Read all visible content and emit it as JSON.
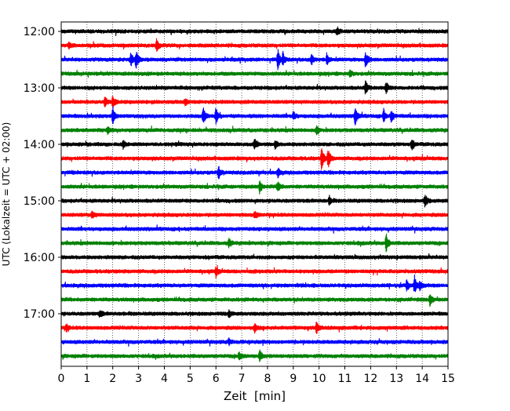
{
  "chart_data": {
    "type": "line",
    "title": "",
    "xlabel": "Zeit  [min]",
    "ylabel": "UTC (Lokalzeit = UTC + 02:00)",
    "xlim": [
      0,
      15
    ],
    "x_ticks": [
      0,
      1,
      2,
      3,
      4,
      5,
      6,
      7,
      8,
      9,
      10,
      11,
      12,
      13,
      14,
      15
    ],
    "x_grid": true,
    "x_grid_style": "dotted",
    "y_ticks": [
      "12:00",
      "13:00",
      "14:00",
      "15:00",
      "16:00",
      "17:00"
    ],
    "trace_interval_min": 15,
    "first_trace_start": "12:00",
    "last_trace_start": "17:45",
    "trace_color_cycle": [
      "#000000",
      "#ff0000",
      "#0000ff",
      "#008000"
    ],
    "events": [
      {
        "trace": "12:00",
        "x": [
          10.7
        ],
        "amp": [
          0.6
        ]
      },
      {
        "trace": "12:15",
        "x": [
          0.3,
          3.7
        ],
        "amp": [
          0.6,
          0.9
        ]
      },
      {
        "trace": "12:30",
        "x": [
          2.7,
          2.9,
          8.4,
          8.6,
          9.7,
          10.3,
          11.8
        ],
        "amp": [
          1.0,
          1.3,
          1.4,
          0.9,
          0.8,
          0.8,
          1.3
        ]
      },
      {
        "trace": "12:45",
        "x": [
          11.2
        ],
        "amp": [
          0.5
        ]
      },
      {
        "trace": "13:00",
        "x": [
          11.8,
          12.6
        ],
        "amp": [
          1.0,
          0.8
        ]
      },
      {
        "trace": "13:15",
        "x": [
          1.7,
          2.0,
          4.8
        ],
        "amp": [
          0.7,
          0.9,
          0.5
        ]
      },
      {
        "trace": "13:30",
        "x": [
          2.0,
          5.5,
          6.0,
          9.0,
          11.4,
          12.5,
          12.8
        ],
        "amp": [
          1.2,
          1.5,
          1.2,
          0.6,
          1.3,
          0.9,
          0.8
        ]
      },
      {
        "trace": "13:45",
        "x": [
          1.8,
          9.9
        ],
        "amp": [
          0.5,
          0.6
        ]
      },
      {
        "trace": "14:00",
        "x": [
          2.4,
          7.5,
          8.3,
          13.6
        ],
        "amp": [
          0.6,
          0.7,
          0.6,
          0.8
        ]
      },
      {
        "trace": "14:15",
        "x": [
          10.1,
          10.35
        ],
        "amp": [
          1.6,
          1.4
        ]
      },
      {
        "trace": "14:30",
        "x": [
          6.1,
          8.4
        ],
        "amp": [
          0.9,
          0.6
        ]
      },
      {
        "trace": "14:45",
        "x": [
          7.7,
          8.4
        ],
        "amp": [
          1.0,
          0.9
        ]
      },
      {
        "trace": "15:00",
        "x": [
          10.4,
          14.1
        ],
        "amp": [
          0.6,
          0.9
        ]
      },
      {
        "trace": "15:15",
        "x": [
          1.2,
          7.5
        ],
        "amp": [
          0.5,
          0.5
        ]
      },
      {
        "trace": "15:30",
        "x": [],
        "amp": []
      },
      {
        "trace": "15:45",
        "x": [
          6.5,
          12.6
        ],
        "amp": [
          0.6,
          1.3
        ]
      },
      {
        "trace": "16:00",
        "x": [],
        "amp": []
      },
      {
        "trace": "16:15",
        "x": [
          6.0
        ],
        "amp": [
          0.7
        ]
      },
      {
        "trace": "16:30",
        "x": [
          13.4,
          13.7,
          13.9
        ],
        "amp": [
          0.7,
          1.3,
          0.7
        ]
      },
      {
        "trace": "16:45",
        "x": [
          14.3
        ],
        "amp": [
          1.0
        ]
      },
      {
        "trace": "17:00",
        "x": [
          1.5,
          6.5
        ],
        "amp": [
          0.5,
          0.5
        ]
      },
      {
        "trace": "17:15",
        "x": [
          0.2,
          7.5,
          9.9
        ],
        "amp": [
          0.5,
          0.6,
          0.8
        ]
      },
      {
        "trace": "17:30",
        "x": [
          6.5
        ],
        "amp": [
          0.4
        ]
      },
      {
        "trace": "17:45",
        "x": [
          6.9,
          7.7
        ],
        "amp": [
          0.6,
          0.9
        ]
      }
    ]
  }
}
